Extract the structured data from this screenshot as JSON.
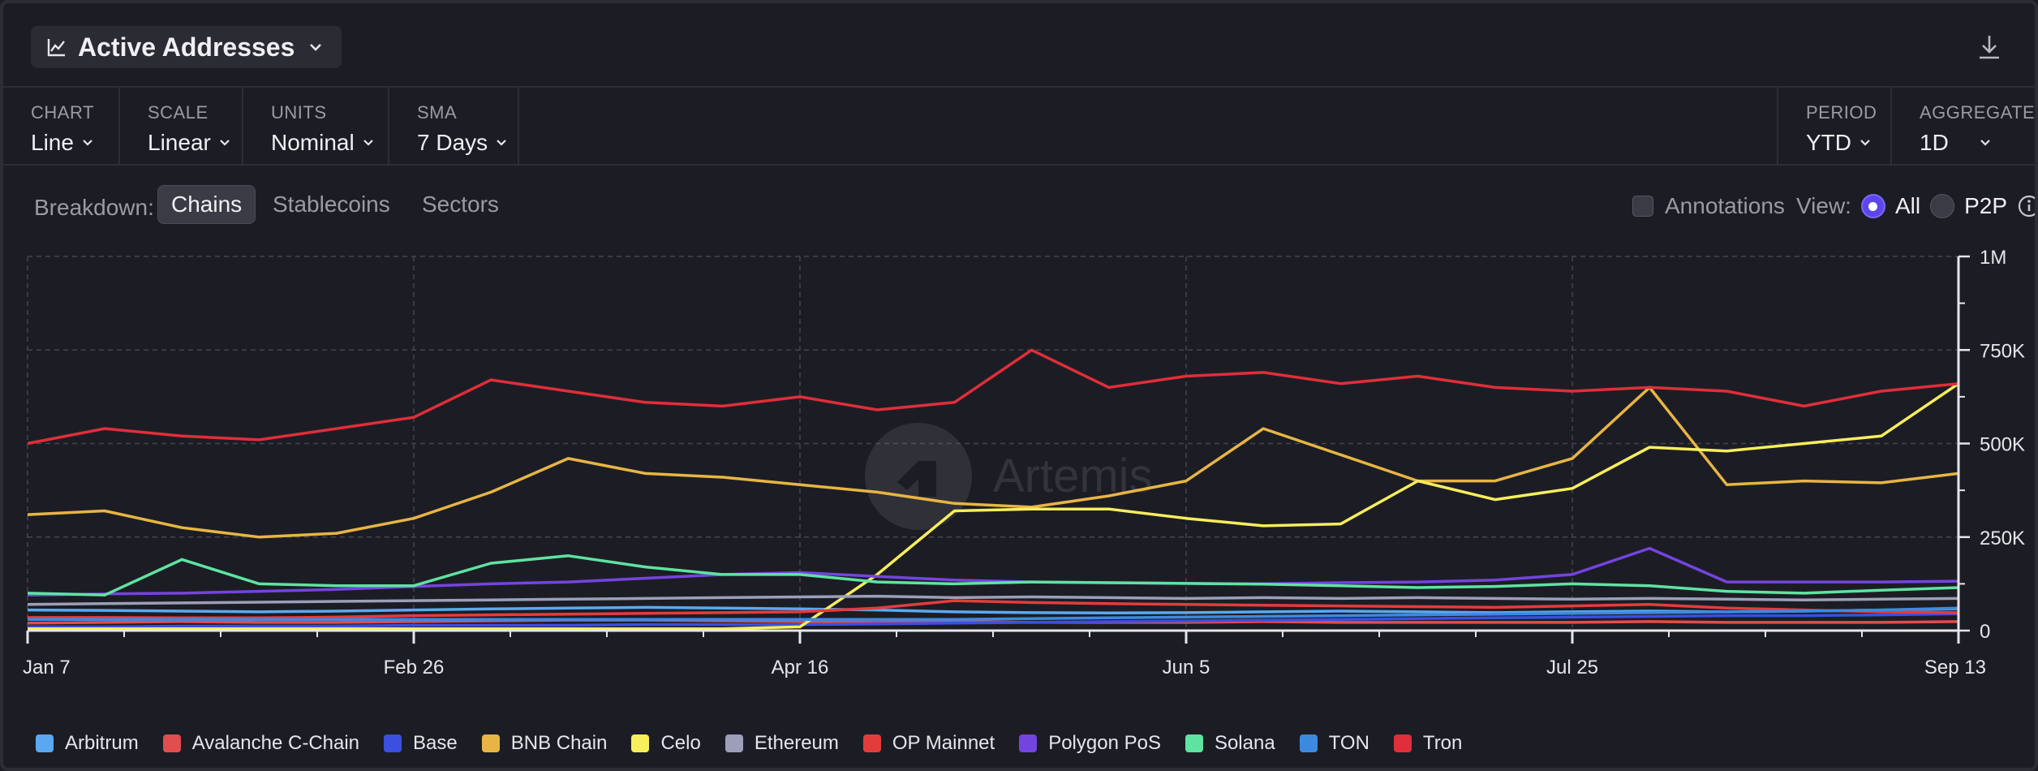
{
  "header": {
    "title": "Active Addresses"
  },
  "controls": {
    "chart": {
      "caption": "CHART",
      "value": "Line"
    },
    "scale": {
      "caption": "SCALE",
      "value": "Linear"
    },
    "units": {
      "caption": "UNITS",
      "value": "Nominal"
    },
    "sma": {
      "caption": "SMA",
      "value": "7 Days"
    },
    "period": {
      "caption": "PERIOD",
      "value": "YTD"
    },
    "aggregate": {
      "caption": "AGGREGATE",
      "value": "1D"
    }
  },
  "breakdown": {
    "label": "Breakdown:",
    "tabs": [
      "Chains",
      "Stablecoins",
      "Sectors"
    ],
    "active": "Chains"
  },
  "options": {
    "annotations_label": "Annotations",
    "view_label": "View:",
    "view_all": "All",
    "view_p2p": "P2P"
  },
  "watermark": "Artemis",
  "chart_data": {
    "type": "line",
    "title": "Active Addresses",
    "x_tick_labels": [
      "Jan 7",
      "Feb 26",
      "Apr 16",
      "Jun 5",
      "Jul 25",
      "Sep 13"
    ],
    "y_tick_labels": [
      "0",
      "250K",
      "500K",
      "750K",
      "1M"
    ],
    "ylim": [
      0,
      1000000
    ],
    "grid": true,
    "legend_position": "bottom",
    "x": [
      "Jan 7",
      "Jan 17",
      "Jan 27",
      "Feb 6",
      "Feb 16",
      "Feb 26",
      "Mar 7",
      "Mar 17",
      "Mar 27",
      "Apr 6",
      "Apr 16",
      "Apr 26",
      "May 6",
      "May 16",
      "May 26",
      "Jun 5",
      "Jun 15",
      "Jun 25",
      "Jul 5",
      "Jul 15",
      "Jul 25",
      "Aug 4",
      "Aug 14",
      "Aug 24",
      "Sep 3",
      "Sep 13"
    ],
    "series": [
      {
        "name": "Arbitrum",
        "color": "#5aa9f0",
        "values": [
          55000,
          54000,
          52000,
          50000,
          52000,
          55000,
          58000,
          60000,
          62000,
          60000,
          58000,
          55000,
          50000,
          48000,
          47000,
          48000,
          50000,
          52000,
          50000,
          48000,
          50000,
          52000,
          50000,
          52000,
          55000,
          58000
        ]
      },
      {
        "name": "Avalanche C-Chain",
        "color": "#e24d4d",
        "values": [
          20000,
          22000,
          24000,
          22000,
          22000,
          24000,
          26000,
          28000,
          28000,
          26000,
          24000,
          22000,
          24000,
          22000,
          22000,
          22000,
          24000,
          22000,
          22000,
          22000,
          22000,
          24000,
          22000,
          22000,
          22000,
          24000
        ]
      },
      {
        "name": "Base",
        "color": "#3b4fe0",
        "values": [
          10000,
          10000,
          12000,
          12000,
          12000,
          14000,
          14000,
          14000,
          16000,
          16000,
          16000,
          18000,
          20000,
          22000,
          24000,
          26000,
          28000,
          30000,
          32000,
          34000,
          36000,
          38000,
          40000,
          40000,
          42000,
          45000
        ]
      },
      {
        "name": "BNB Chain",
        "color": "#e8b544",
        "values": [
          310000,
          320000,
          275000,
          250000,
          260000,
          300000,
          370000,
          460000,
          420000,
          410000,
          390000,
          370000,
          340000,
          330000,
          360000,
          400000,
          540000,
          470000,
          400000,
          400000,
          460000,
          650000,
          390000,
          400000,
          395000,
          420000
        ]
      },
      {
        "name": "Celo",
        "color": "#f7ee5c",
        "values": [
          5000,
          5000,
          5000,
          5000,
          5000,
          5000,
          5000,
          5000,
          5000,
          5000,
          10000,
          150000,
          320000,
          325000,
          325000,
          300000,
          280000,
          285000,
          400000,
          350000,
          380000,
          490000,
          480000,
          500000,
          520000,
          660000
        ]
      },
      {
        "name": "Ethereum",
        "color": "#9b9fb8",
        "values": [
          70000,
          72000,
          74000,
          76000,
          78000,
          80000,
          82000,
          84000,
          86000,
          88000,
          90000,
          92000,
          88000,
          90000,
          88000,
          86000,
          88000,
          86000,
          88000,
          86000,
          84000,
          86000,
          84000,
          82000,
          84000,
          86000
        ]
      },
      {
        "name": "OP Mainnet",
        "color": "#e43c3c",
        "values": [
          35000,
          35000,
          34000,
          34000,
          36000,
          40000,
          42000,
          44000,
          46000,
          48000,
          50000,
          60000,
          80000,
          75000,
          72000,
          70000,
          68000,
          66000,
          64000,
          62000,
          66000,
          70000,
          60000,
          55000,
          50000,
          48000
        ]
      },
      {
        "name": "Polygon PoS",
        "color": "#7444e0",
        "values": [
          95000,
          98000,
          100000,
          105000,
          110000,
          118000,
          125000,
          130000,
          140000,
          150000,
          155000,
          145000,
          135000,
          130000,
          128000,
          126000,
          125000,
          128000,
          130000,
          135000,
          150000,
          220000,
          130000,
          130000,
          130000,
          132000
        ]
      },
      {
        "name": "Solana",
        "color": "#5fe3a1",
        "values": [
          100000,
          95000,
          190000,
          125000,
          120000,
          120000,
          180000,
          200000,
          170000,
          150000,
          150000,
          130000,
          125000,
          130000,
          128000,
          126000,
          124000,
          120000,
          115000,
          118000,
          125000,
          120000,
          105000,
          100000,
          108000,
          115000
        ]
      },
      {
        "name": "TON",
        "color": "#3c8ae0",
        "values": [
          30000,
          30000,
          30000,
          30000,
          30000,
          30000,
          30000,
          30000,
          30000,
          30000,
          30000,
          30000,
          30000,
          32000,
          34000,
          36000,
          38000,
          40000,
          42000,
          44000,
          46000,
          48000,
          50000,
          52000,
          55000,
          60000
        ]
      },
      {
        "name": "Tron",
        "color": "#e02e3a",
        "values": [
          500000,
          540000,
          520000,
          510000,
          540000,
          570000,
          670000,
          640000,
          610000,
          600000,
          625000,
          590000,
          610000,
          750000,
          650000,
          680000,
          690000,
          660000,
          680000,
          650000,
          640000,
          650000,
          640000,
          600000,
          640000,
          660000
        ]
      }
    ]
  }
}
